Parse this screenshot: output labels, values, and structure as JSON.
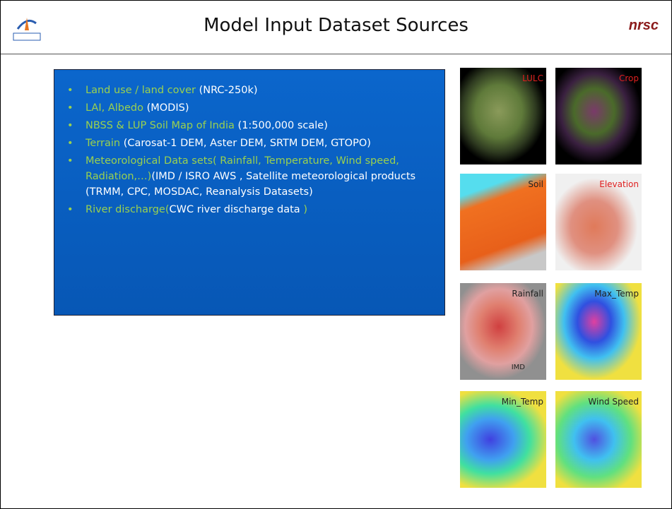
{
  "header": {
    "title": "Model Input Dataset Sources",
    "brand": "nrsc"
  },
  "bullets": [
    [
      {
        "text": "Land use / land cover ",
        "color": "#9ad14f"
      },
      {
        "text": "(NRC-250k)",
        "color": "#ffffff"
      }
    ],
    [
      {
        "text": "LAI, Albedo ",
        "color": "#9ad14f"
      },
      {
        "text": "(MODIS)",
        "color": "#ffffff"
      }
    ],
    [
      {
        "text": "NBSS & LUP Soil Map of India ",
        "color": "#9ad14f"
      },
      {
        "text": "(1:500,000 scale)",
        "color": "#ffffff"
      }
    ],
    [
      {
        "text": "Terrain ",
        "color": "#9ad14f"
      },
      {
        "text": "(Carosat-1 DEM, Aster DEM, SRTM DEM, GTOPO)",
        "color": "#ffffff"
      }
    ],
    [
      {
        "text": "Meteorological Data sets( Rainfall, Temperature, Wind speed, Radiation,…)",
        "color": "#9ad14f"
      },
      {
        "text": "(IMD / ISRO AWS , Satellite meteorological products (TRMM, CPC, MOSDAC, Reanalysis Datasets)",
        "color": "#ffffff"
      }
    ],
    [
      {
        "text": "River discharge(",
        "color": "#9ad14f"
      },
      {
        "text": "CWC river discharge data ",
        "color": "#ffffff"
      },
      {
        "text": ")",
        "color": "#9ad14f"
      }
    ]
  ],
  "maps": [
    {
      "label": "LULC",
      "label_color": "#e02020"
    },
    {
      "label": "Crop",
      "label_color": "#e02020"
    },
    {
      "label": "Soil",
      "label_color": "#222222"
    },
    {
      "label": "Elevation",
      "label_color": "#e02020"
    },
    {
      "label": "Rainfall",
      "label_color": "#222222",
      "note": "IMD"
    },
    {
      "label": "Max_Temp",
      "label_color": "#222222"
    },
    {
      "label": "Min_Temp",
      "label_color": "#222222"
    },
    {
      "label": "Wind Speed",
      "label_color": "#222222"
    }
  ]
}
